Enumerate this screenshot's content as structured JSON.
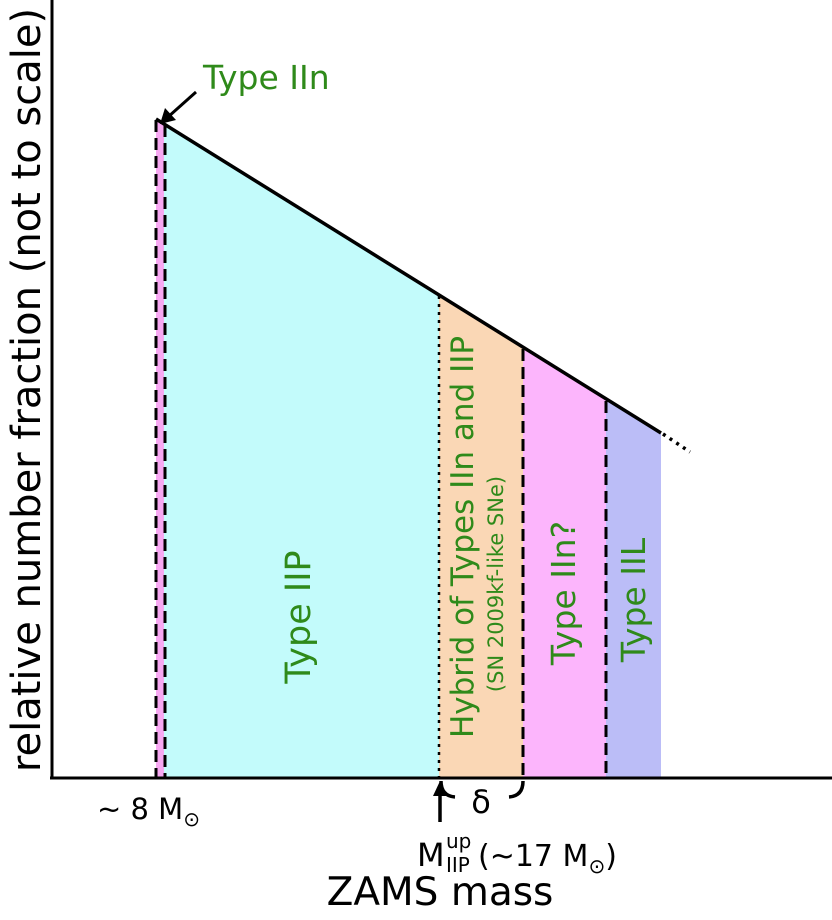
{
  "axes": {
    "y_label": "relative number fraction (not to scale)",
    "x_label": "ZAMS mass"
  },
  "regions": [
    {
      "id": "iin-low",
      "label": "",
      "color": "#f7a8f2"
    },
    {
      "id": "iip",
      "label": "Type IIP",
      "color": "#c3fbfb"
    },
    {
      "id": "hybrid",
      "label": "Hybrid of Types IIn and IIP",
      "sublabel": "(SN 2009kf-like SNe)",
      "color": "#fad7b5"
    },
    {
      "id": "iin-high",
      "label": "Type IIn?",
      "color": "#fcb5fc"
    },
    {
      "id": "iil",
      "label": "Type IIL",
      "color": "#bbbdf7"
    }
  ],
  "annotations": {
    "top_callout": "Type IIn",
    "tick_left": "~ 8 M",
    "delta": "δ",
    "mup_main": "M",
    "mup_sup": "up",
    "mup_sub": "IIP",
    "mup_paren_open": "(~17 M",
    "mup_paren_close": ")",
    "sun_symbol": "⊙"
  },
  "colors": {
    "label_green": "#2f8a1a",
    "line": "#000000"
  }
}
